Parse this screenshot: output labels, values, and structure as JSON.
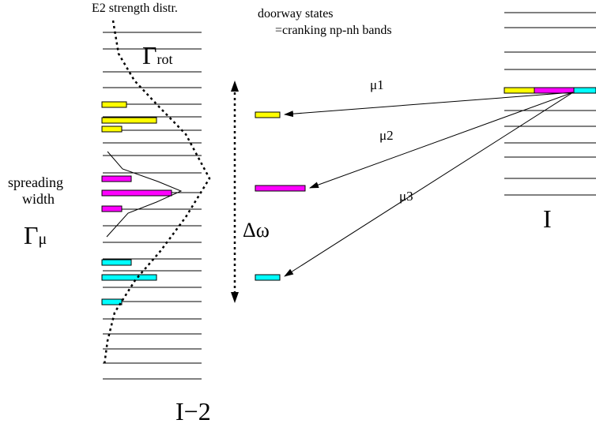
{
  "labels": {
    "e2_strength": "E2 strength distr.",
    "doorway_line1": "doorway states",
    "doorway_line2": "=cranking np-nh bands",
    "gamma_rot_symbol": "Γ",
    "gamma_rot_sub": "rot",
    "spreading_line1": "spreading",
    "spreading_line2": "width",
    "gamma_mu_symbol": "Γ",
    "gamma_mu_sub": "μ",
    "delta_omega": "Δω",
    "mu1": "μ1",
    "mu2": "μ2",
    "mu3": "μ3",
    "left_spectrum": "I−2",
    "right_spectrum": "I"
  },
  "colors": {
    "yellow": "#ffff00",
    "magenta": "#ff00ff",
    "cyan": "#00ffff",
    "line": "#000000"
  },
  "icons": {
    "delta_omega_arrow": "double-headed-dotted-arrow",
    "transition_arrows": "arrow"
  }
}
